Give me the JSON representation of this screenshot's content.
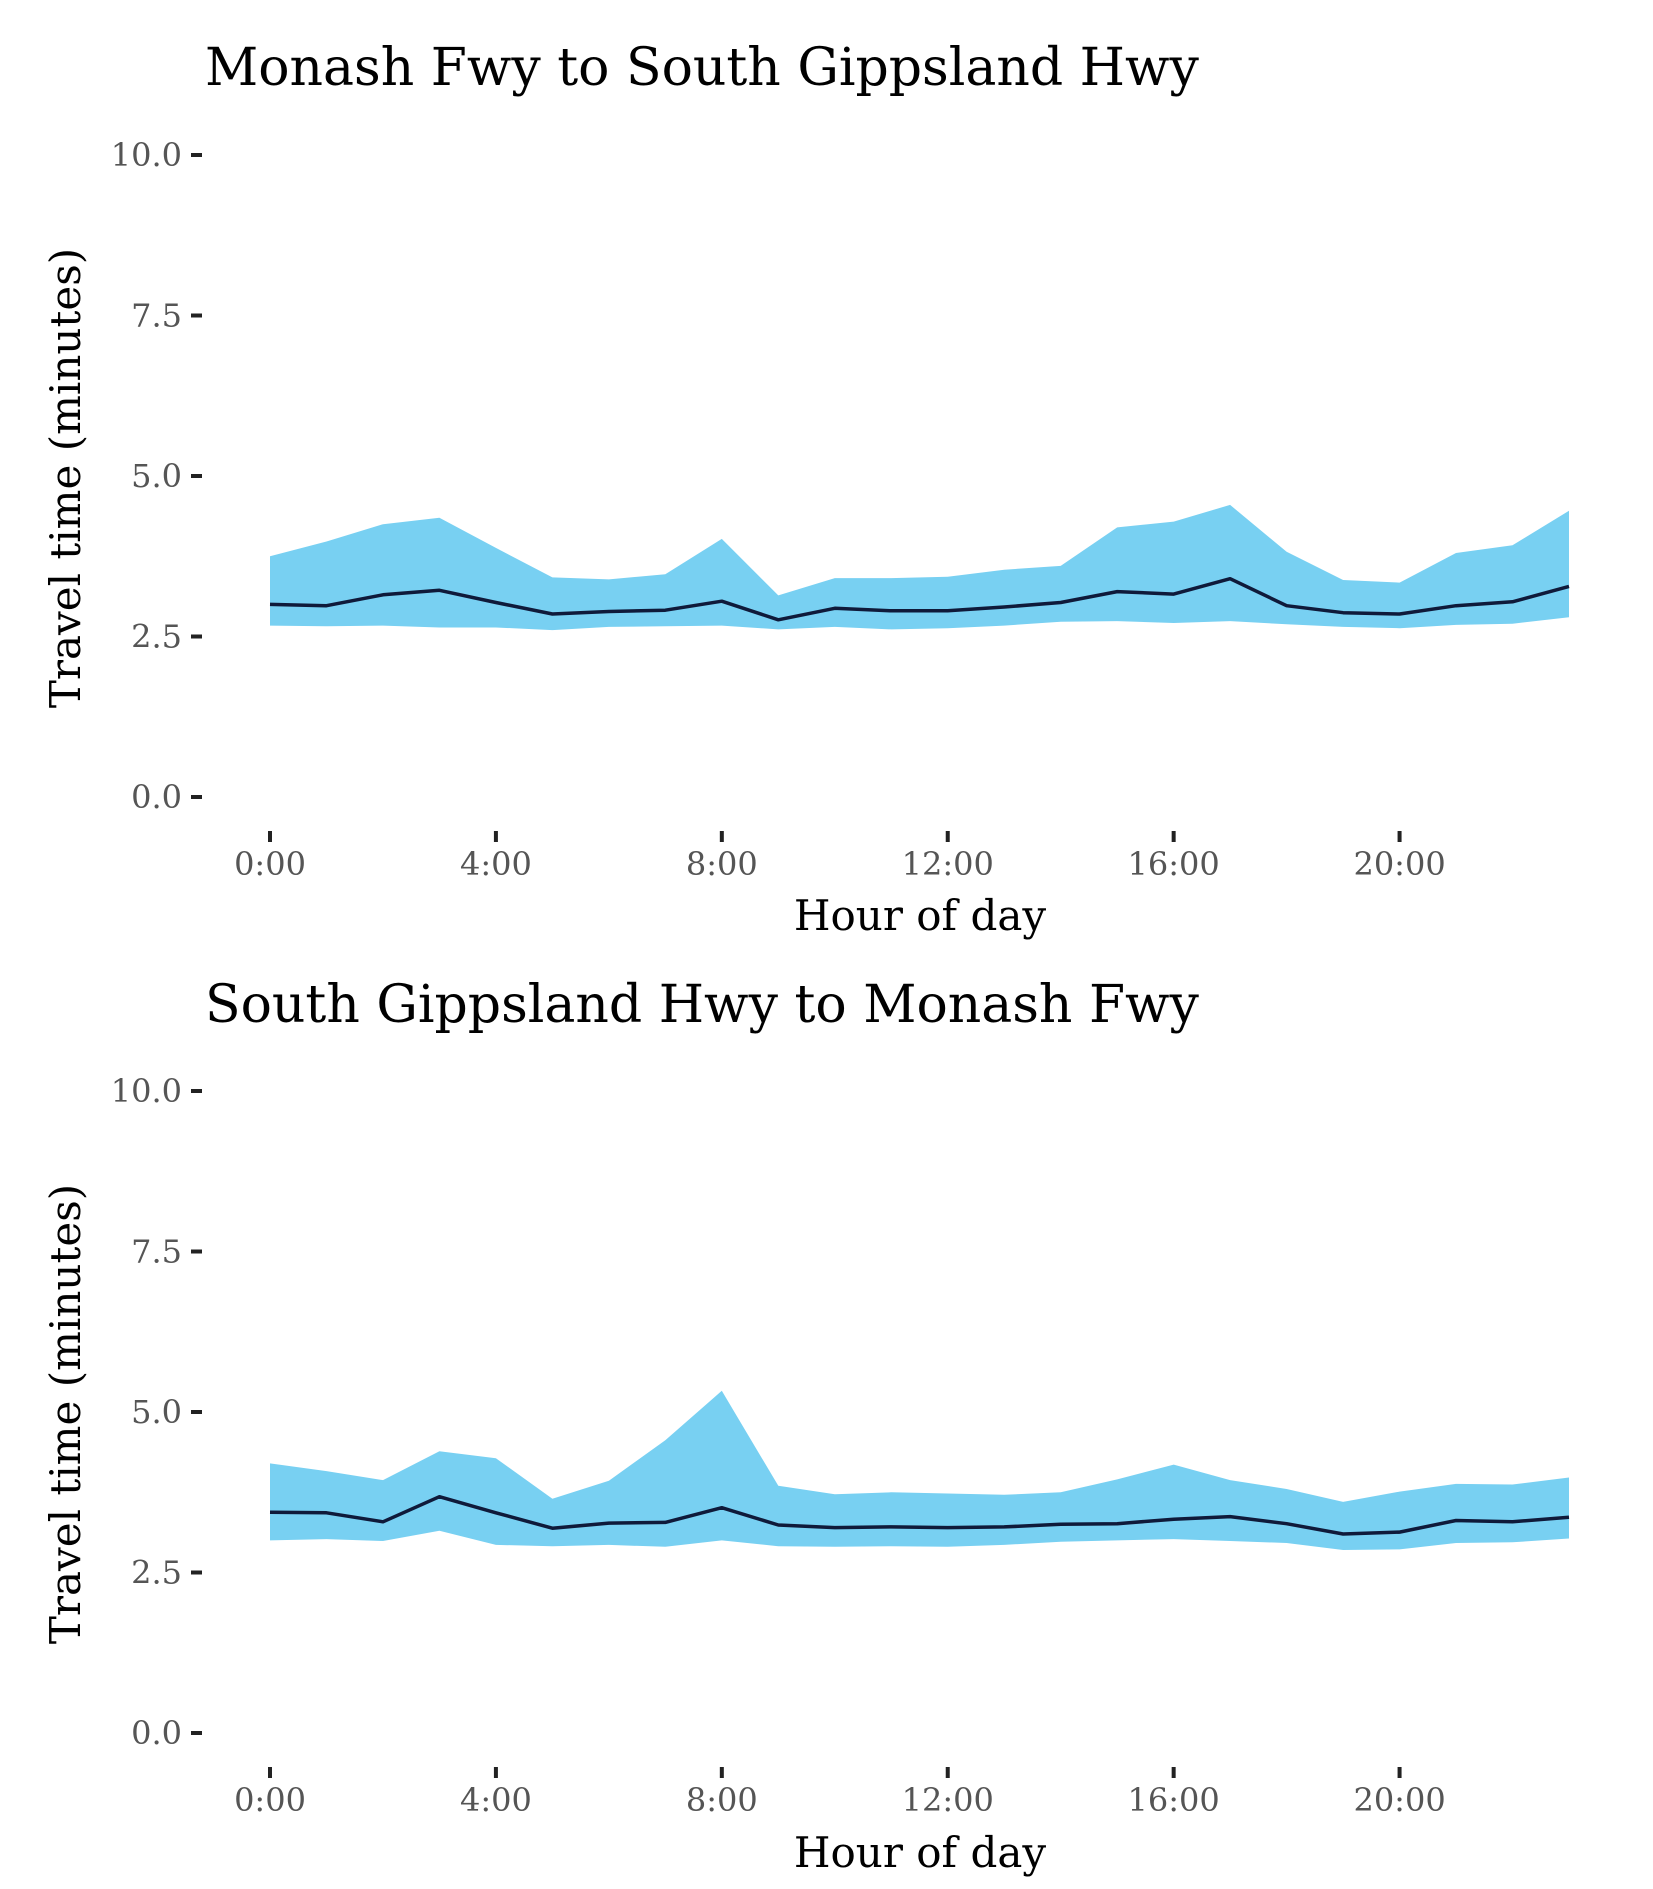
{
  "chart_data": [
    {
      "type": "area",
      "title": "Monash Fwy to South Gippsland Hwy",
      "xlabel": "Hour of day",
      "ylabel": "Travel time (minutes)",
      "ylim": [
        0,
        10
      ],
      "yticks": [
        "0.0",
        "2.5",
        "5.0",
        "7.5",
        "10.0"
      ],
      "xticks": [
        "0:00",
        "4:00",
        "8:00",
        "12:00",
        "16:00",
        "20:00"
      ],
      "xlim": [
        0,
        23
      ],
      "grid": false,
      "band_color": "#78d0f2",
      "line_color": "#0f1a3a",
      "x": [
        0,
        1,
        2,
        3,
        4,
        5,
        6,
        7,
        8,
        9,
        10,
        11,
        12,
        13,
        14,
        15,
        16,
        17,
        18,
        19,
        20,
        21,
        22,
        23
      ],
      "series": [
        {
          "values": [
            3.0,
            2.98,
            3.15,
            3.22,
            3.03,
            2.85,
            2.89,
            2.91,
            3.05,
            2.76,
            2.94,
            2.9,
            2.9,
            2.96,
            3.03,
            3.2,
            3.16,
            3.4,
            2.98,
            2.87,
            2.85,
            2.98,
            3.04,
            3.28
          ]
        },
        {
          "values": [
            2.67,
            2.66,
            2.67,
            2.64,
            2.64,
            2.6,
            2.65,
            2.66,
            2.67,
            2.61,
            2.65,
            2.61,
            2.63,
            2.67,
            2.73,
            2.74,
            2.71,
            2.74,
            2.69,
            2.65,
            2.63,
            2.68,
            2.7,
            2.8
          ]
        },
        {
          "values": [
            3.75,
            3.98,
            4.25,
            4.35,
            3.88,
            3.42,
            3.39,
            3.47,
            4.02,
            3.14,
            3.41,
            3.41,
            3.43,
            3.54,
            3.6,
            4.2,
            4.29,
            4.55,
            3.82,
            3.38,
            3.34,
            3.8,
            3.92,
            4.46
          ]
        }
      ]
    },
    {
      "type": "area",
      "title": "South Gippsland Hwy to Monash Fwy",
      "xlabel": "Hour of day",
      "ylabel": "Travel time (minutes)",
      "ylim": [
        0,
        10
      ],
      "yticks": [
        "0.0",
        "2.5",
        "5.0",
        "7.5",
        "10.0"
      ],
      "xticks": [
        "0:00",
        "4:00",
        "8:00",
        "12:00",
        "16:00",
        "20:00"
      ],
      "xlim": [
        0,
        23
      ],
      "grid": false,
      "band_color": "#78d0f2",
      "line_color": "#0f1a3a",
      "x": [
        0,
        1,
        2,
        3,
        4,
        5,
        6,
        7,
        8,
        9,
        10,
        11,
        12,
        13,
        14,
        15,
        16,
        17,
        18,
        19,
        20,
        21,
        22,
        23
      ],
      "series": [
        {
          "values": [
            3.44,
            3.43,
            3.29,
            3.68,
            3.43,
            3.19,
            3.27,
            3.28,
            3.51,
            3.24,
            3.2,
            3.21,
            3.2,
            3.21,
            3.25,
            3.26,
            3.33,
            3.37,
            3.26,
            3.1,
            3.13,
            3.31,
            3.29,
            3.36
          ]
        },
        {
          "values": [
            3.0,
            3.02,
            2.99,
            3.15,
            2.93,
            2.91,
            2.93,
            2.9,
            3.0,
            2.91,
            2.9,
            2.91,
            2.9,
            2.93,
            2.98,
            3.0,
            3.02,
            2.99,
            2.96,
            2.85,
            2.86,
            2.96,
            2.97,
            3.03
          ]
        },
        {
          "values": [
            4.2,
            4.08,
            3.94,
            4.39,
            4.28,
            3.65,
            3.93,
            4.56,
            5.33,
            3.85,
            3.72,
            3.75,
            3.73,
            3.71,
            3.75,
            3.95,
            4.18,
            3.94,
            3.8,
            3.6,
            3.76,
            3.88,
            3.87,
            3.98
          ]
        }
      ]
    }
  ]
}
